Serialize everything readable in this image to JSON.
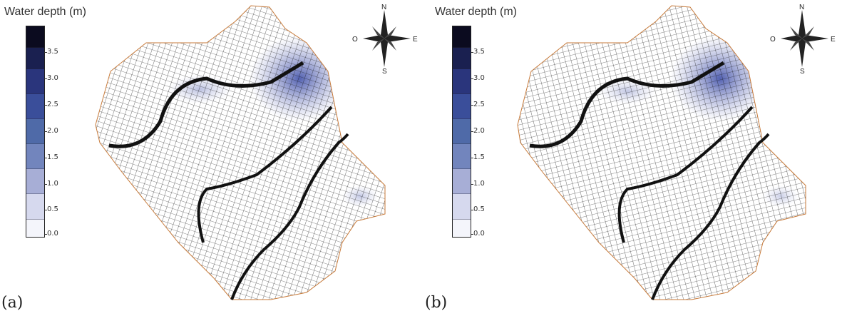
{
  "colorbar": {
    "title": "Water depth (m)",
    "ticks": [
      "3.5",
      "3.0",
      "2.5",
      "2.0",
      "1.5",
      "1.0",
      "0.5",
      "0.0"
    ],
    "colors": {
      "low": "#ffffff",
      "mid": "#3f5fa5",
      "high": "#0a0a20"
    }
  },
  "compass": {
    "north": "N",
    "south": "S",
    "east": "E",
    "west": "O"
  },
  "panels": [
    {
      "label": "(a)"
    },
    {
      "label": "(b)"
    }
  ],
  "colors": {
    "boundary": "#c77a3a",
    "mesh": "#111111",
    "river": "#111111"
  }
}
